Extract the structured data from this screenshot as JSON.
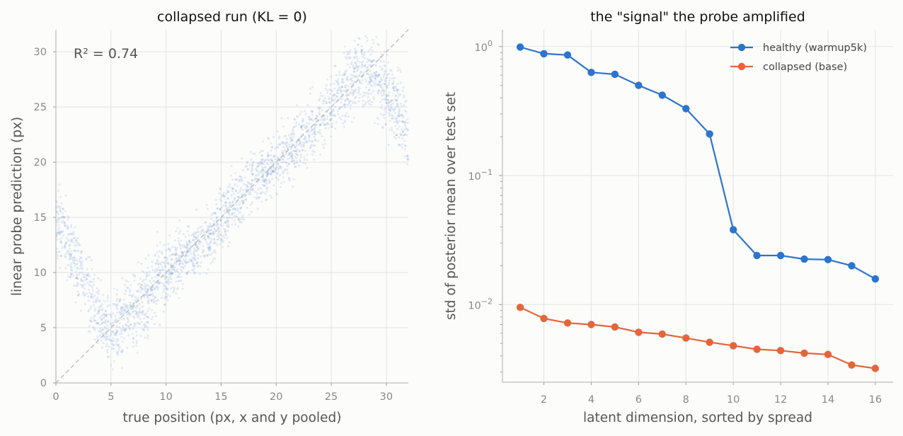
{
  "chart_data": [
    {
      "type": "scatter",
      "title": "collapsed run (KL = 0)",
      "xlabel": "true position (px, x and y pooled)",
      "ylabel": "linear probe prediction (px)",
      "xlim": [
        0,
        32
      ],
      "ylim": [
        0,
        32
      ],
      "xticks": [
        "0",
        "5",
        "10",
        "15",
        "20",
        "25",
        "30"
      ],
      "yticks": [
        "0",
        "5",
        "10",
        "15",
        "20",
        "25",
        "30"
      ],
      "annotation": "R² = 0.74",
      "reference_line": "y = x",
      "grid": true,
      "point_color": "#2b6fd0",
      "trend": {
        "x": [
          0,
          2,
          4,
          5,
          6,
          8,
          10,
          12,
          14,
          16,
          18,
          20,
          22,
          24,
          26,
          27.5,
          29,
          31,
          32
        ],
        "y": [
          15,
          10.5,
          6,
          4,
          5.5,
          7.5,
          10,
          12,
          13,
          16,
          18.5,
          20,
          21.5,
          24,
          26.5,
          28.5,
          28,
          25,
          22
        ]
      }
    },
    {
      "type": "line",
      "title": "the \"signal\" the probe amplified",
      "xlabel": "latent dimension, sorted by spread",
      "ylabel": "std of posterior mean over test set",
      "yscale": "log",
      "xlim": [
        0.25,
        16.75
      ],
      "ylim": [
        0.0025,
        1.35
      ],
      "xticks": [
        "2",
        "4",
        "6",
        "8",
        "10",
        "12",
        "14",
        "16"
      ],
      "yticks": [
        {
          "base": "10",
          "exp": "0"
        },
        {
          "base": "10",
          "exp": "−1"
        },
        {
          "base": "10",
          "exp": "−2"
        }
      ],
      "legend_position": "top-right",
      "grid": true,
      "x": [
        1,
        2,
        3,
        4,
        5,
        6,
        7,
        8,
        9,
        10,
        11,
        12,
        13,
        14,
        15,
        16
      ],
      "series": [
        {
          "name": "healthy (warmup5k)",
          "color": "#2b74d0",
          "values": [
            0.99,
            0.88,
            0.86,
            0.63,
            0.61,
            0.5,
            0.42,
            0.33,
            0.21,
            0.038,
            0.024,
            0.024,
            0.0225,
            0.0223,
            0.02,
            0.0158
          ]
        },
        {
          "name": "collapsed (base)",
          "color": "#e5653a",
          "values": [
            0.0095,
            0.0078,
            0.0072,
            0.007,
            0.0067,
            0.0061,
            0.0059,
            0.0055,
            0.0051,
            0.0048,
            0.0045,
            0.0044,
            0.0042,
            0.0041,
            0.0034,
            0.0032
          ]
        }
      ]
    }
  ]
}
